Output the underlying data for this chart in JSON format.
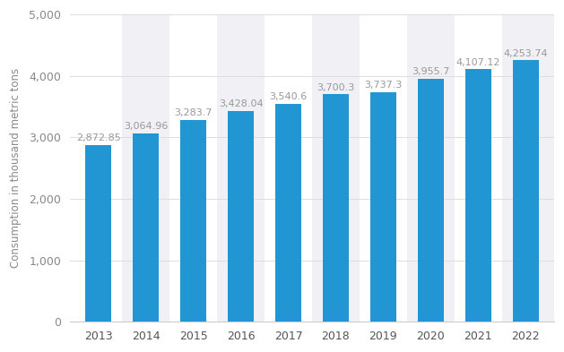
{
  "years": [
    "2013",
    "2014",
    "2015",
    "2016",
    "2017",
    "2018",
    "2019",
    "2020",
    "2021",
    "2022"
  ],
  "values": [
    2872.85,
    3064.96,
    3283.7,
    3428.04,
    3540.6,
    3700.3,
    3737.3,
    3955.7,
    4107.12,
    4253.74
  ],
  "labels": [
    "2,872.85",
    "3,064.96",
    "3,283.7",
    "3,428.04",
    "3,540.6",
    "3,700.3",
    "3,737.3",
    "3,955.7",
    "4,107.12",
    "4,253.74"
  ],
  "bar_color": "#2196d3",
  "background_color": "#ffffff",
  "plot_bg_color": "#ffffff",
  "col_band_color": "#f0f0f5",
  "right_strip_color": "#f0f0f5",
  "ylabel": "Consumption in thousand metric tons",
  "ylim": [
    0,
    5000
  ],
  "yticks": [
    0,
    1000,
    2000,
    3000,
    4000,
    5000
  ],
  "ytick_labels": [
    "0",
    "1,000",
    "2,000",
    "3,000",
    "4,000",
    "5,000"
  ],
  "grid_color": "#dddddd",
  "label_color": "#999999",
  "label_fontsize": 8,
  "ylabel_fontsize": 8.5,
  "tick_fontsize": 9,
  "bar_width": 0.55
}
